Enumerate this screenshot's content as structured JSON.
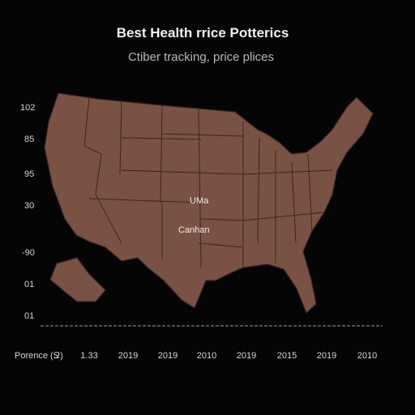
{
  "header": {
    "title": "Best Health rrice Potterics",
    "subtitle": "Ctiber tracking, price plices"
  },
  "left_labels": [
    "102",
    "85",
    "95",
    "30",
    "-90",
    "01",
    "01"
  ],
  "map_labels": [
    "UMa",
    "Canhan"
  ],
  "bottom_labels": [
    "Porence (Ջ)",
    "1.33",
    "2019",
    "2019",
    "2010",
    "2019",
    "2015",
    "2019",
    "2010"
  ]
}
